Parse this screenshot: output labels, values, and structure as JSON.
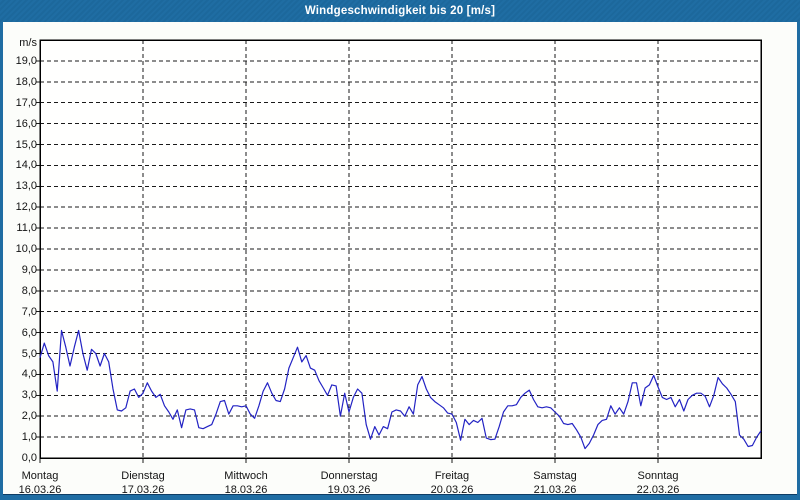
{
  "window": {
    "title": "Windgeschwindigkeit bis 20 [m/s]",
    "colors": {
      "frame_blue": "#1f6da3",
      "title_text": "#ffffff",
      "content_bg": "#fcfdfa",
      "plot_bg": "#fffffe",
      "grid": "#1a1a1a",
      "axis": "#000000",
      "line": "#2323c3",
      "label_text": "#141414"
    }
  },
  "chart_data": {
    "type": "line",
    "title": "Windgeschwindigkeit bis 20 [m/s]",
    "xlabel": "",
    "ylabel": "m/s",
    "ylim": [
      0,
      20
    ],
    "y_tick_step": 1.0,
    "grid": "dashed",
    "legend": "none",
    "y_tick_labels": [
      "0,0",
      "1,0",
      "2,0",
      "3,0",
      "4,0",
      "5,0",
      "6,0",
      "7,0",
      "8,0",
      "9,0",
      "10,0",
      "11,0",
      "12,0",
      "13,0",
      "14,0",
      "15,0",
      "16,0",
      "17,0",
      "18,0",
      "19,0"
    ],
    "x_days": [
      {
        "label": "Montag",
        "date": "16.03.26"
      },
      {
        "label": "Dienstag",
        "date": "17.03.26"
      },
      {
        "label": "Mittwoch",
        "date": "18.03.26"
      },
      {
        "label": "Donnerstag",
        "date": "19.03.26"
      },
      {
        "label": "Freitag",
        "date": "20.03.26"
      },
      {
        "label": "Samstag",
        "date": "21.03.26"
      },
      {
        "label": "Sonntag",
        "date": "22.03.26"
      }
    ],
    "series": [
      {
        "name": "Windgeschwindigkeit",
        "unit": "m/s",
        "samples_per_day": 24,
        "values": [
          4.8,
          5.5,
          4.9,
          4.6,
          3.2,
          6.1,
          5.3,
          4.4,
          5.3,
          6.1,
          5.0,
          4.2,
          5.2,
          5.0,
          4.4,
          5.0,
          4.6,
          3.3,
          2.3,
          2.25,
          2.4,
          3.2,
          3.3,
          2.9,
          3.1,
          3.6,
          3.2,
          2.9,
          3.05,
          2.5,
          2.2,
          1.85,
          2.3,
          1.45,
          2.3,
          2.35,
          2.3,
          1.45,
          1.4,
          1.5,
          1.6,
          2.1,
          2.7,
          2.75,
          2.1,
          2.5,
          2.5,
          2.45,
          2.5,
          2.1,
          1.9,
          2.5,
          3.2,
          3.6,
          3.1,
          2.75,
          2.7,
          3.3,
          4.3,
          4.8,
          5.3,
          4.6,
          4.9,
          4.3,
          4.2,
          3.7,
          3.35,
          3.0,
          3.5,
          3.45,
          2.0,
          3.1,
          2.2,
          2.9,
          3.3,
          3.1,
          1.6,
          0.9,
          1.5,
          1.1,
          1.5,
          1.4,
          2.2,
          2.3,
          2.25,
          2.0,
          2.45,
          2.1,
          3.5,
          3.9,
          3.3,
          2.9,
          2.7,
          2.55,
          2.4,
          2.15,
          2.1,
          1.7,
          0.85,
          1.85,
          1.6,
          1.8,
          1.7,
          1.9,
          0.95,
          0.88,
          0.9,
          1.5,
          2.2,
          2.5,
          2.5,
          2.55,
          2.9,
          3.1,
          3.25,
          2.8,
          2.45,
          2.4,
          2.45,
          2.4,
          2.2,
          2.0,
          1.65,
          1.6,
          1.65,
          1.35,
          1.0,
          0.45,
          0.7,
          1.1,
          1.6,
          1.8,
          1.85,
          2.5,
          2.1,
          2.4,
          2.1,
          2.7,
          3.6,
          3.6,
          2.5,
          3.35,
          3.5,
          3.95,
          3.4,
          2.9,
          2.8,
          2.9,
          2.45,
          2.8,
          2.25,
          2.8,
          3.0,
          3.1,
          3.1,
          2.95,
          2.45,
          3.0,
          3.85,
          3.55,
          3.35,
          3.05,
          2.7,
          1.1,
          0.9,
          0.55,
          0.6,
          1.0,
          1.3
        ]
      }
    ]
  }
}
